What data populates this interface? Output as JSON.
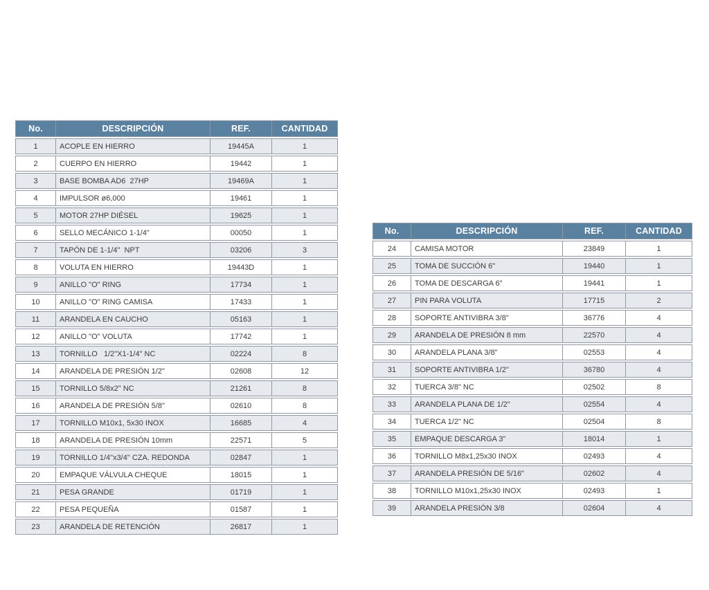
{
  "colors": {
    "header_bg": "#5b81a1",
    "header_text": "#ffffff",
    "row_stripe": "#e6e9ee",
    "row_white": "#ffffff",
    "cell_text": "#3c3c3c",
    "border": "#8e97a3"
  },
  "parts_tables": [
    {
      "name": "parts-table-items-1-23",
      "columns": [
        "No.",
        "DESCRIPCIÓN",
        "REF.",
        "CANTIDAD"
      ],
      "rows": [
        [
          "1",
          "ACOPLE EN HIERRO",
          "19445A",
          "1"
        ],
        [
          "2",
          "CUERPO EN HIERRO",
          "19442",
          "1"
        ],
        [
          "3",
          "BASE BOMBA AD6  27HP",
          "19469A",
          "1"
        ],
        [
          "4",
          "IMPULSOR ø6,000",
          "19461",
          "1"
        ],
        [
          "5",
          "MOTOR 27HP DIÉSEL",
          "19625",
          "1"
        ],
        [
          "6",
          "SELLO MECÁNICO 1-1/4\"",
          "00050",
          "1"
        ],
        [
          "7",
          "TAPÓN DE 1-1/4\"  NPT",
          "03206",
          "3"
        ],
        [
          "8",
          "VOLUTA EN HIERRO",
          "19443D",
          "1"
        ],
        [
          "9",
          "ANILLO \"O\" RING",
          "17734",
          "1"
        ],
        [
          "10",
          "ANILLO \"O\" RING CAMISA",
          "17433",
          "1"
        ],
        [
          "11",
          "ARANDELA EN CAUCHO",
          "05163",
          "1"
        ],
        [
          "12",
          "ANILLO \"O\" VOLUTA",
          "17742",
          "1"
        ],
        [
          "13",
          "TORNILLO   1/2\"X1-1/4\" NC",
          "02224",
          "8"
        ],
        [
          "14",
          "ARANDELA DE PRESIÓN 1/2\"",
          "02608",
          "12"
        ],
        [
          "15",
          "TORNILLO 5/8x2\" NC",
          "21261",
          "8"
        ],
        [
          "16",
          "ARANDELA DE PRESIÓN 5/8\"",
          "02610",
          "8"
        ],
        [
          "17",
          "TORNILLO M10x1, 5x30 INOX",
          "16685",
          "4"
        ],
        [
          "18",
          "ARANDELA DE PRESIÓN 10mm",
          "22571",
          "5"
        ],
        [
          "19",
          "TORNILLO 1/4\"x3/4\" CZA. REDONDA",
          "02847",
          "1"
        ],
        [
          "20",
          "EMPAQUE VÁLVULA CHEQUE",
          "18015",
          "1"
        ],
        [
          "21",
          "PESA GRANDE",
          "01719",
          "1"
        ],
        [
          "22",
          "PESA PEQUEÑA",
          "01587",
          "1"
        ],
        [
          "23",
          "ARANDELA DE RETENCIÓN",
          "26817",
          "1"
        ]
      ]
    },
    {
      "name": "parts-table-items-24-39",
      "columns": [
        "No.",
        "DESCRIPCIÓN",
        "REF.",
        "CANTIDAD"
      ],
      "rows": [
        [
          "24",
          "CAMISA MOTOR",
          "23849",
          "1"
        ],
        [
          "25",
          "TOMA DE SUCCIÓN 6\"",
          "19440",
          "1"
        ],
        [
          "26",
          "TOMA DE DESCARGA 6\"",
          "19441",
          "1"
        ],
        [
          "27",
          "PIN PARA VOLUTA",
          "17715",
          "2"
        ],
        [
          "28",
          "SOPORTE ANTIVIBRA 3/8\"",
          "36776",
          "4"
        ],
        [
          "29",
          "ARANDELA DE PRESIÓN 8 mm",
          "22570",
          "4"
        ],
        [
          "30",
          "ARANDELA PLANA 3/8\"",
          "02553",
          "4"
        ],
        [
          "31",
          "SOPORTE ANTIVIBRA 1/2\"",
          "36780",
          "4"
        ],
        [
          "32",
          "TUERCA 3/8\" NC",
          "02502",
          "8"
        ],
        [
          "33",
          "ARANDELA PLANA DE 1/2\"",
          "02554",
          "4"
        ],
        [
          "34",
          "TUERCA 1/2\" NC",
          "02504",
          "8"
        ],
        [
          "35",
          "EMPAQUE DESCARGA 3\"",
          "18014",
          "1"
        ],
        [
          "36",
          "TORNILLO M8x1,25x30 INOX",
          "02493",
          "4"
        ],
        [
          "37",
          "ARANDELA PRESIÓN DE 5/16\"",
          "02602",
          "4"
        ],
        [
          "38",
          "TORNILLO M10x1,25x30 INOX",
          "02493",
          "1"
        ],
        [
          "39",
          "ARANDELA PRESIÓN 3/8",
          "02604",
          "4"
        ]
      ]
    }
  ]
}
